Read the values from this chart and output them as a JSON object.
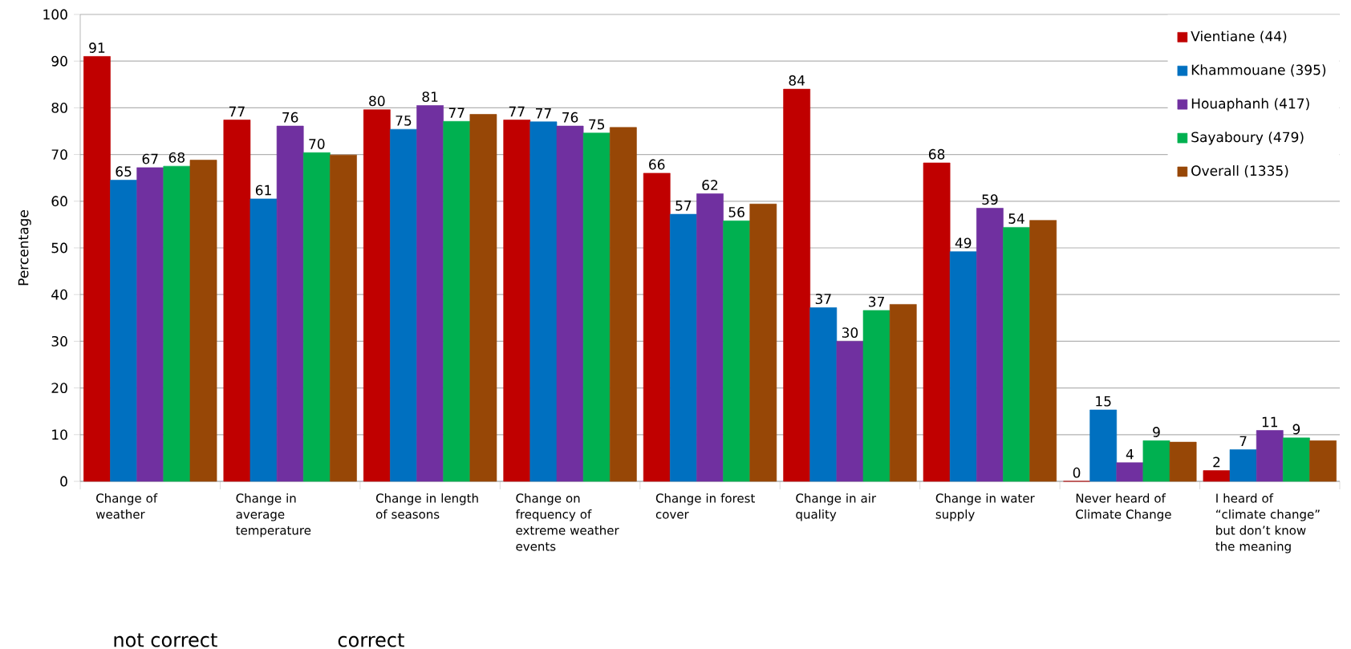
{
  "chart_data": {
    "type": "bar",
    "ylabel": "Percentage",
    "categories": [
      "Change of weather",
      "Change in average temperature",
      "Change in length of seasons",
      "Change on frequency of extreme weather events",
      "Change in forest cover",
      "Change in air quality",
      "Change in water supply",
      "Never heard of Climate Change",
      "I heard of “climate change” but don’t know the meaning"
    ],
    "series": [
      {
        "name": "Vientiane (44)",
        "color": "#c00000",
        "values": [
          91,
          77.4,
          79.6,
          77.4,
          66,
          84,
          68.2,
          0,
          2.3
        ],
        "value_labels": [
          "91",
          "77",
          "80",
          "77",
          "66",
          "84",
          "68",
          "0",
          "2"
        ]
      },
      {
        "name": "Khammouane (395)",
        "color": "#0070c0",
        "values": [
          64.5,
          60.5,
          75.4,
          77,
          57.2,
          37.2,
          49.2,
          15.3,
          6.8
        ],
        "value_labels": [
          "65",
          "61",
          "75",
          "77",
          "57",
          "37",
          "49",
          "15",
          "7"
        ]
      },
      {
        "name": "Houaphanh (417)",
        "color": "#7030a0",
        "values": [
          67.2,
          76.1,
          80.5,
          76.1,
          61.6,
          30,
          58.5,
          4,
          10.9
        ],
        "value_labels": [
          "67",
          "76",
          "81",
          "76",
          "62",
          "30",
          "59",
          "4",
          "11"
        ]
      },
      {
        "name": "Sayaboury (479)",
        "color": "#00b050",
        "values": [
          67.5,
          70.4,
          77.1,
          74.6,
          55.8,
          36.6,
          54.4,
          8.7,
          9.3
        ],
        "value_labels": [
          "68",
          "70",
          "77",
          "75",
          "56",
          "37",
          "54",
          "9",
          "9"
        ]
      },
      {
        "name": "Overall (1335)",
        "color": "#974706",
        "values": [
          68.8,
          69.9,
          78.6,
          75.8,
          59.4,
          37.9,
          55.9,
          8.4,
          8.7
        ]
      }
    ],
    "ylim": [
      0,
      100
    ],
    "yticks": [
      0,
      10,
      20,
      30,
      40,
      50,
      60,
      70,
      80,
      90,
      100
    ],
    "grid": "y",
    "legend": "top right",
    "annotations": [
      "not correct",
      "correct"
    ]
  }
}
